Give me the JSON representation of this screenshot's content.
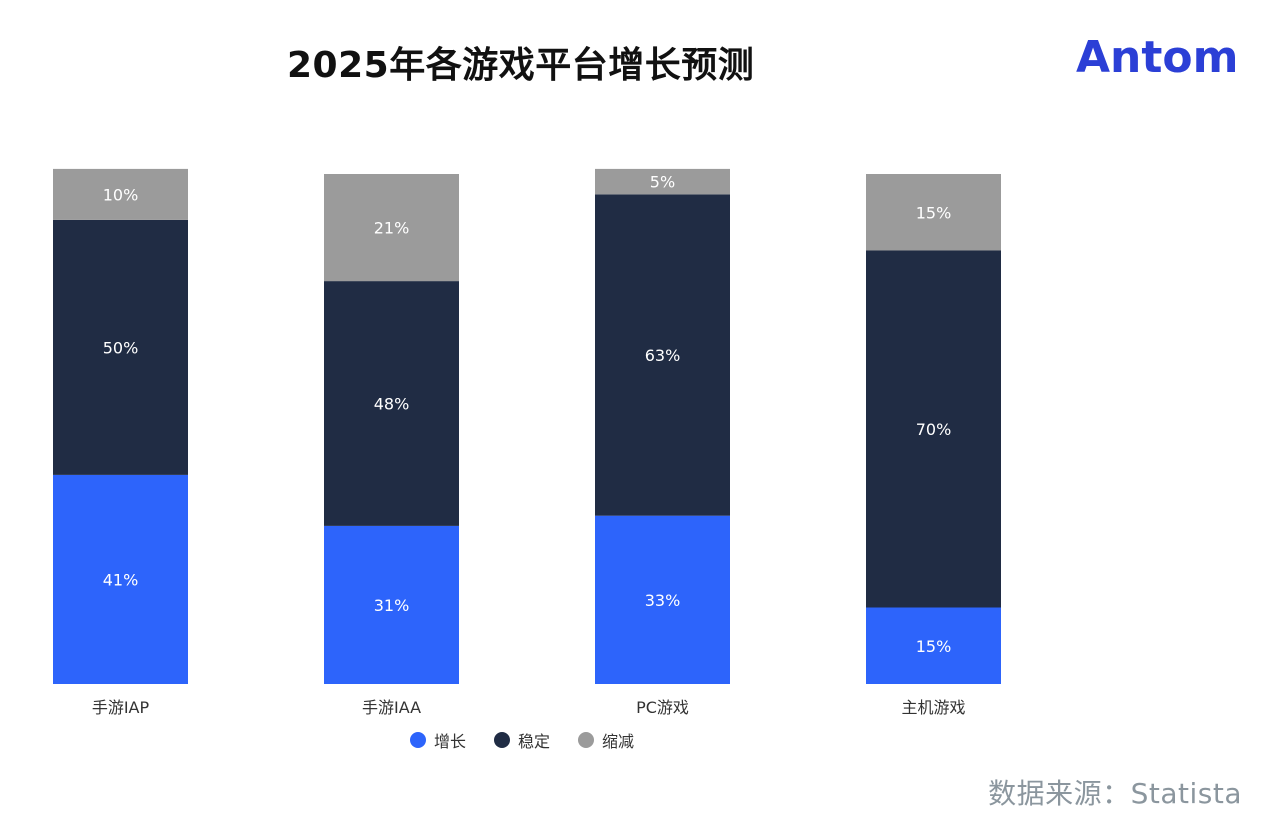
{
  "title": "2025年各游戏平台增长预测",
  "logo": {
    "text": "Antom",
    "color": "#2b3fd6"
  },
  "source": "数据来源：Statista",
  "colors": {
    "growth": "#2d64fb",
    "stable": "#202c44",
    "decline": "#9b9b9b"
  },
  "chart_data": {
    "type": "bar",
    "stacked": true,
    "categories": [
      "手游IAP",
      "手游IAA",
      "PC游戏",
      "主机游戏"
    ],
    "series": [
      {
        "name": "增长",
        "values": [
          41,
          31,
          33,
          15
        ]
      },
      {
        "name": "稳定",
        "values": [
          50,
          48,
          63,
          70
        ]
      },
      {
        "name": "缩减",
        "values": [
          10,
          21,
          5,
          15
        ]
      }
    ],
    "value_suffix": "%",
    "legend_position": "bottom"
  }
}
